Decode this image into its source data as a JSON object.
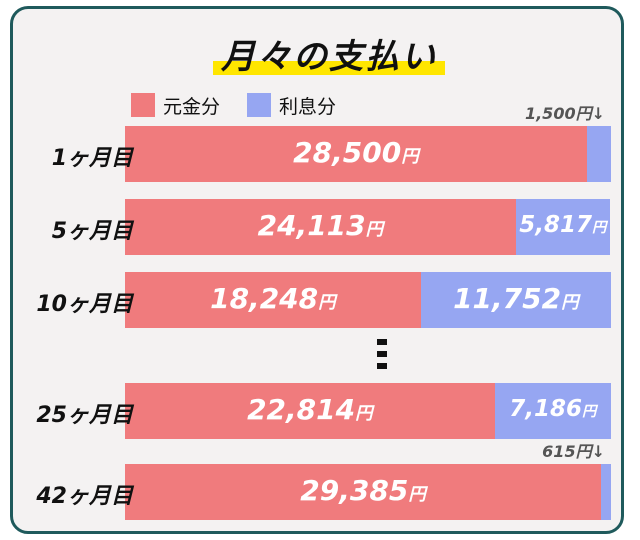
{
  "chart_data": {
    "type": "bar",
    "orientation": "horizontal",
    "stacked": true,
    "title": "月々の支払い",
    "unit": "円",
    "categories": [
      "1ヶ月目",
      "5ヶ月目",
      "10ヶ月目",
      "25ヶ月目",
      "42ヶ月目"
    ],
    "series": [
      {
        "name": "元金分",
        "color": "#f07b7d",
        "values": [
          28500,
          24113,
          18248,
          22814,
          29385
        ]
      },
      {
        "name": "利息分",
        "color": "#96a6f2",
        "values": [
          1500,
          5817,
          11752,
          7186,
          615
        ]
      }
    ],
    "labels": {
      "principal": [
        "28,500",
        "24,113",
        "18,248",
        "22,814",
        "29,385"
      ],
      "interest": [
        "1,500",
        "5,817",
        "11,752",
        "7,186",
        "615"
      ]
    },
    "interest_label_outside": [
      true,
      false,
      false,
      false,
      true
    ],
    "legend_position": "top-left",
    "ellipsis_after_category": "10ヶ月目",
    "grid": false
  }
}
